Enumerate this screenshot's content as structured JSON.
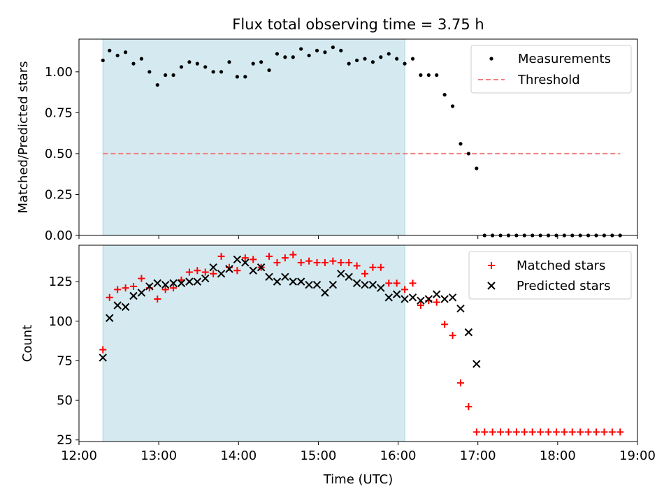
{
  "chart_data": [
    {
      "type": "scatter",
      "title": "Flux total observing time = 3.75 h",
      "xlabel": "",
      "ylabel": "Matched/Predicted stars",
      "x_unit": "time of day (UTC)",
      "xlim": [
        "12:00",
        "19:00"
      ],
      "ylim": [
        0,
        1.2
      ],
      "yticks": [
        "0.00",
        "0.25",
        "0.50",
        "0.75",
        "1.00"
      ],
      "xtick_labels_visible": false,
      "shaded_interval": {
        "start": "12:18",
        "end": "16:05",
        "color": "#d4eaf0"
      },
      "legend": {
        "location": "upper right",
        "entries": [
          "Measurements",
          "Threshold"
        ]
      },
      "series": [
        {
          "name": "Measurements",
          "marker": "dot",
          "color": "#000000",
          "x": [
            "12:18",
            "12:23",
            "12:29",
            "12:35",
            "12:41",
            "12:47",
            "12:53",
            "12:59",
            "13:05",
            "13:11",
            "13:17",
            "13:23",
            "13:29",
            "13:35",
            "13:41",
            "13:47",
            "13:53",
            "13:59",
            "14:05",
            "14:11",
            "14:17",
            "14:23",
            "14:29",
            "14:35",
            "14:41",
            "14:47",
            "14:53",
            "14:59",
            "15:05",
            "15:11",
            "15:17",
            "15:23",
            "15:29",
            "15:35",
            "15:41",
            "15:47",
            "15:53",
            "15:59",
            "16:05",
            "16:11",
            "16:17",
            "16:23",
            "16:29",
            "16:35",
            "16:41",
            "16:47",
            "16:53",
            "16:59",
            "17:05",
            "17:11",
            "17:17",
            "17:23",
            "17:29",
            "17:35",
            "17:41",
            "17:47",
            "17:53",
            "17:59",
            "18:05",
            "18:11",
            "18:17",
            "18:23",
            "18:29",
            "18:35",
            "18:41",
            "18:47"
          ],
          "y": [
            1.07,
            1.13,
            1.1,
            1.12,
            1.05,
            1.08,
            1.0,
            0.92,
            0.98,
            0.98,
            1.03,
            1.06,
            1.05,
            1.03,
            1.0,
            1.0,
            1.06,
            0.97,
            0.97,
            1.05,
            1.06,
            1.01,
            1.11,
            1.09,
            1.09,
            1.14,
            1.1,
            1.13,
            1.12,
            1.15,
            1.13,
            1.05,
            1.07,
            1.08,
            1.06,
            1.09,
            1.11,
            1.08,
            1.05,
            1.08,
            0.98,
            0.98,
            0.98,
            0.86,
            0.79,
            0.56,
            0.5,
            0.41,
            0,
            0,
            0,
            0,
            0,
            0,
            0,
            0,
            0,
            0,
            0,
            0,
            0,
            0,
            0,
            0,
            0,
            0
          ]
        },
        {
          "name": "Threshold",
          "style": "dashed",
          "color": "#f08080",
          "x": [
            "12:18",
            "18:47"
          ],
          "y": [
            0.5,
            0.5
          ]
        }
      ]
    },
    {
      "type": "scatter",
      "title": "",
      "xlabel": "Time (UTC)",
      "ylabel": "Count",
      "x_unit": "time of day (UTC)",
      "xlim": [
        "12:00",
        "19:00"
      ],
      "xticks": [
        "12:00",
        "13:00",
        "14:00",
        "15:00",
        "16:00",
        "17:00",
        "18:00",
        "19:00"
      ],
      "ylim": [
        24,
        148
      ],
      "yticks": [
        "25",
        "50",
        "75",
        "100",
        "125"
      ],
      "shaded_interval": {
        "start": "12:18",
        "end": "16:05",
        "color": "#d4eaf0"
      },
      "legend": {
        "location": "upper right",
        "entries": [
          "Matched stars",
          "Predicted stars"
        ]
      },
      "series": [
        {
          "name": "Matched stars",
          "marker": "+",
          "color": "#ff0000",
          "x": [
            "12:18",
            "12:23",
            "12:29",
            "12:35",
            "12:41",
            "12:47",
            "12:53",
            "12:59",
            "13:05",
            "13:11",
            "13:17",
            "13:23",
            "13:29",
            "13:35",
            "13:41",
            "13:47",
            "13:53",
            "13:59",
            "14:05",
            "14:11",
            "14:17",
            "14:23",
            "14:29",
            "14:35",
            "14:41",
            "14:47",
            "14:53",
            "14:59",
            "15:05",
            "15:11",
            "15:17",
            "15:23",
            "15:29",
            "15:35",
            "15:41",
            "15:47",
            "15:53",
            "15:59",
            "16:05",
            "16:11",
            "16:17",
            "16:23",
            "16:29",
            "16:35",
            "16:41",
            "16:47",
            "16:53",
            "16:59",
            "17:05",
            "17:11",
            "17:17",
            "17:23",
            "17:29",
            "17:35",
            "17:41",
            "17:47",
            "17:53",
            "17:59",
            "18:05",
            "18:11",
            "18:17",
            "18:23",
            "18:29",
            "18:35",
            "18:41",
            "18:47"
          ],
          "y": [
            82,
            115,
            120,
            121,
            122,
            127,
            121,
            114,
            120,
            121,
            126,
            131,
            132,
            131,
            130,
            141,
            134,
            132,
            140,
            139,
            134,
            141,
            137,
            140,
            142,
            137,
            138,
            137,
            137,
            138,
            137,
            137,
            135,
            130,
            134,
            134,
            124,
            124,
            120,
            124,
            110,
            113,
            112,
            98,
            91,
            61,
            46,
            30,
            30,
            30,
            30,
            30,
            30,
            30,
            30,
            30,
            30,
            30,
            30,
            30,
            30,
            30,
            30,
            30,
            30,
            30
          ]
        },
        {
          "name": "Predicted stars",
          "marker": "x",
          "color": "#000000",
          "x": [
            "12:18",
            "12:23",
            "12:29",
            "12:35",
            "12:41",
            "12:47",
            "12:53",
            "12:59",
            "13:05",
            "13:11",
            "13:17",
            "13:23",
            "13:29",
            "13:35",
            "13:41",
            "13:47",
            "13:53",
            "13:59",
            "14:05",
            "14:11",
            "14:17",
            "14:23",
            "14:29",
            "14:35",
            "14:41",
            "14:47",
            "14:53",
            "14:59",
            "15:05",
            "15:11",
            "15:17",
            "15:23",
            "15:29",
            "15:35",
            "15:41",
            "15:47",
            "15:53",
            "15:59",
            "16:05",
            "16:11",
            "16:17",
            "16:23",
            "16:29",
            "16:35",
            "16:41",
            "16:47",
            "16:53",
            "16:59"
          ],
          "y": [
            77,
            102,
            110,
            109,
            116,
            118,
            122,
            124,
            123,
            124,
            124,
            125,
            125,
            127,
            134,
            130,
            133,
            139,
            137,
            132,
            134,
            128,
            125,
            128,
            125,
            125,
            123,
            123,
            118,
            123,
            130,
            128,
            124,
            123,
            123,
            121,
            115,
            117,
            114,
            115,
            113,
            114,
            117,
            114,
            115,
            108,
            93,
            73
          ]
        }
      ]
    }
  ]
}
